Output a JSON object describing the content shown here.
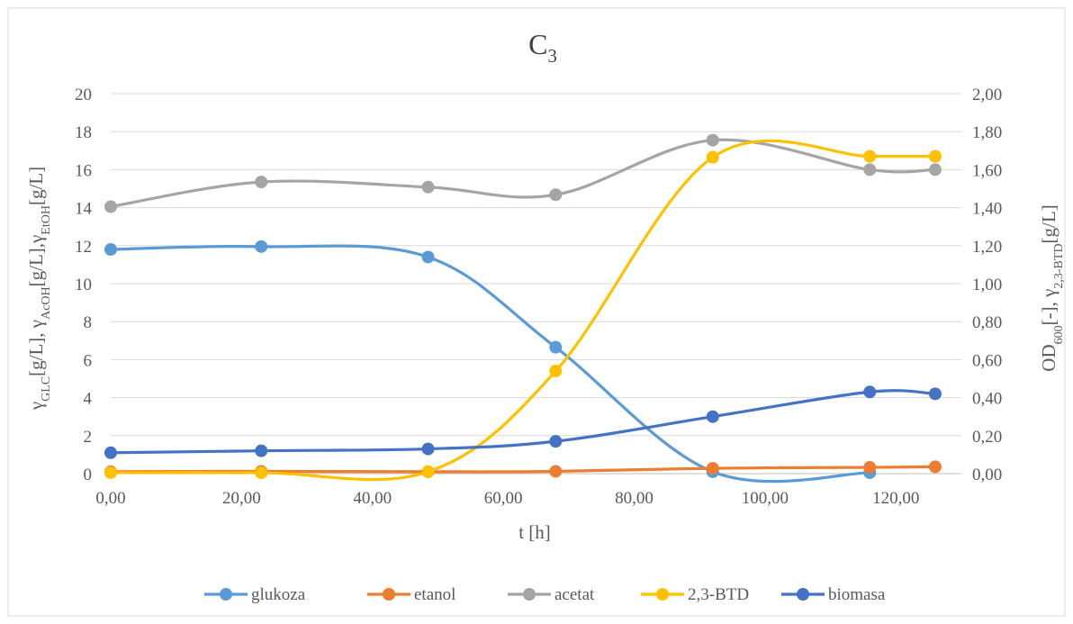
{
  "chart_data": {
    "type": "line",
    "title": "C",
    "title_sub": "3",
    "xlabel": "t [h]",
    "xlim": [
      0,
      130
    ],
    "x_ticks": [
      "0,00",
      "20,00",
      "40,00",
      "60,00",
      "80,00",
      "100,00",
      "120,00"
    ],
    "x_tick_values": [
      0,
      20,
      40,
      60,
      80,
      100,
      120
    ],
    "ylim_left": [
      0,
      20
    ],
    "y_ticks_left": [
      "0",
      "2",
      "4",
      "6",
      "8",
      "10",
      "12",
      "14",
      "16",
      "18",
      "20"
    ],
    "y_tick_values_left": [
      0,
      2,
      4,
      6,
      8,
      10,
      12,
      14,
      16,
      18,
      20
    ],
    "ylim_right": [
      0,
      2
    ],
    "y_ticks_right": [
      "0,00",
      "0,20",
      "0,40",
      "0,60",
      "0,80",
      "1,00",
      "1,20",
      "1,40",
      "1,60",
      "1,80",
      "2,00"
    ],
    "y_tick_values_right": [
      0,
      0.2,
      0.4,
      0.6,
      0.8,
      1.0,
      1.2,
      1.4,
      1.6,
      1.8,
      2.0
    ],
    "ylabel_left": [
      {
        "t": "γ"
      },
      {
        "t": "GLC",
        "sub": true
      },
      {
        "t": "[g/L], γ"
      },
      {
        "t": "AcOH",
        "sub": true
      },
      {
        "t": "[g/L],γ"
      },
      {
        "t": "EtOH",
        "sub": true
      },
      {
        "t": "[g/L]"
      }
    ],
    "ylabel_right": [
      {
        "t": "OD"
      },
      {
        "t": "600",
        "sub": true
      },
      {
        "t": "[-], γ"
      },
      {
        "t": "2,3-BTD",
        "sub": true
      },
      {
        "t": "[g/L]"
      }
    ],
    "grid": true,
    "legend_position": "bottom",
    "series": [
      {
        "name": "glukoza",
        "axis": "left",
        "color": "#5B9BD5",
        "x": [
          0,
          23,
          48.5,
          68,
          92,
          116,
          126
        ],
        "y": [
          11.8,
          11.95,
          11.4,
          6.65,
          0.1,
          0.05,
          null
        ]
      },
      {
        "name": "etanol",
        "axis": "left",
        "color": "#ED7D31",
        "x": [
          0,
          23,
          48.5,
          68,
          92,
          116,
          126
        ],
        "y": [
          0.1,
          0.12,
          0.1,
          0.12,
          0.28,
          0.33,
          0.36
        ]
      },
      {
        "name": "acetat",
        "axis": "left",
        "color": "#A5A5A5",
        "x": [
          0,
          23,
          48.5,
          68,
          92,
          116,
          126
        ],
        "y": [
          14.05,
          15.35,
          15.08,
          14.68,
          17.55,
          16.0,
          16.0
        ]
      },
      {
        "name": "2,3-BTD",
        "axis": "right",
        "color": "#FFC000",
        "x": [
          0,
          23,
          48.5,
          68,
          92,
          116,
          126
        ],
        "y": [
          0.005,
          0.005,
          0.01,
          0.54,
          1.665,
          1.67,
          1.67
        ]
      },
      {
        "name": "biomasa",
        "axis": "right",
        "color": "#4472C4",
        "x": [
          0,
          23,
          48.5,
          68,
          92,
          116,
          126
        ],
        "y": [
          0.11,
          0.12,
          0.13,
          0.17,
          0.3,
          0.43,
          0.42
        ]
      }
    ]
  }
}
